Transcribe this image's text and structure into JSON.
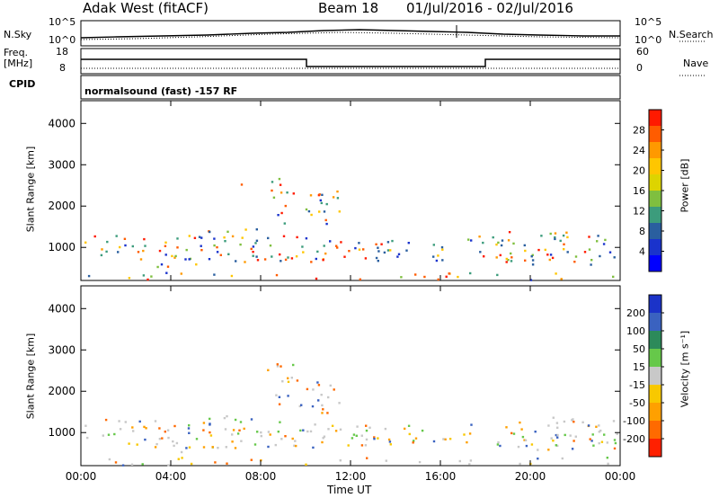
{
  "header": {
    "station": "Adak West (fitACF)",
    "beam": "Beam 18",
    "date_range": "01/Jul/2016 - 02/Jul/2016"
  },
  "top_panels": {
    "nsky_label": "N.Sky",
    "nsky_ticks": [
      "10^5",
      "10^0"
    ],
    "nsearch_label": "N.Search",
    "nsearch_ticks": [
      "10^5",
      "10^0"
    ],
    "freq_label": "Freq.",
    "freq_unit": "[MHz]",
    "freq_ticks": [
      "18",
      "8"
    ],
    "nave_label": "Nave",
    "nave_ticks": [
      "60",
      "0"
    ],
    "cpid_label": "CPID",
    "cpid_text": "normalsound (fast) -157 RF"
  },
  "chart_data": [
    {
      "type": "heatmap",
      "name": "power",
      "ylabel": "Slant Range [km]",
      "yticks": [
        "4000",
        "3000",
        "2000",
        "1000"
      ],
      "ylim": [
        200,
        4550
      ],
      "xlim_hours": [
        0,
        24
      ],
      "colorbar_label": "Power [dB]",
      "colorbar_ticks": [
        "28",
        "24",
        "20",
        "16",
        "12",
        "8",
        "4"
      ],
      "colorbar_colors": [
        "#ff1a00",
        "#ff5c00",
        "#ff9900",
        "#ffc600",
        "#ddd400",
        "#7fbf3f",
        "#3c9c7c",
        "#2a5f9f",
        "#1a33cc",
        "#0000ff"
      ]
    },
    {
      "type": "heatmap",
      "name": "velocity",
      "ylabel": "Slant Range [km]",
      "yticks": [
        "4000",
        "3000",
        "2000",
        "1000"
      ],
      "ylim": [
        200,
        4550
      ],
      "xlim_hours": [
        0,
        24
      ],
      "colorbar_label": "Velocity [m s⁻¹]",
      "colorbar_ticks": [
        "200",
        "100",
        "50",
        "15",
        "-15",
        "-50",
        "-100",
        "-200"
      ],
      "colorbar_colors": [
        "#1b33c8",
        "#3a62c0",
        "#2c8a5a",
        "#66c84a",
        "#c8c8c8",
        "#f8c800",
        "#ffa000",
        "#ff6a00",
        "#ff2000"
      ]
    }
  ],
  "x_axis": {
    "ticks": [
      "00:00",
      "04:00",
      "08:00",
      "12:00",
      "16:00",
      "20:00",
      "00:00"
    ],
    "label": "Time UT"
  }
}
